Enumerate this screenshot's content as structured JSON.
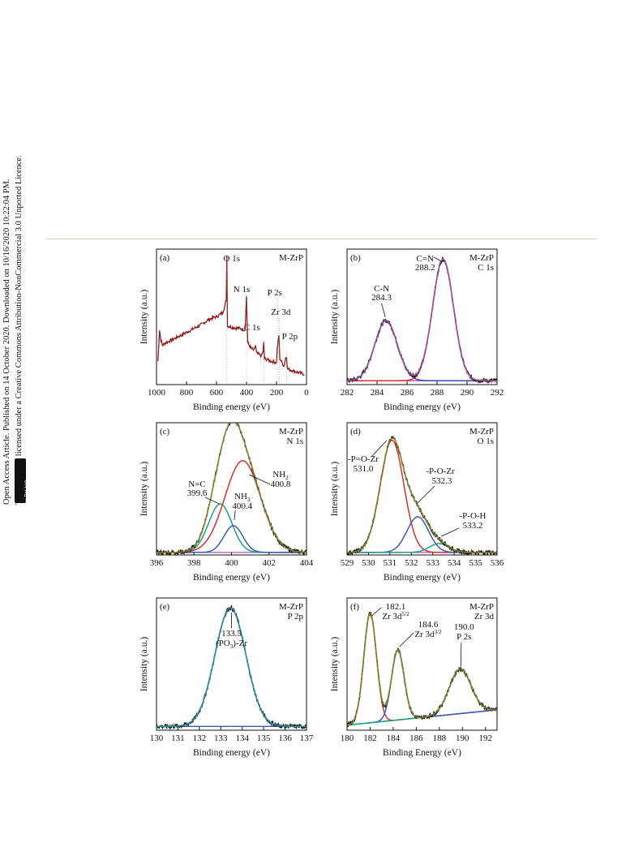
{
  "sidebar": {
    "line1": "Open Access Article. Published on 14 October 2020. Downloaded on 10/16/2020 10:22:04 PM.",
    "line2": "This article is licensed under a Creative Commons Attribution-NonCommercial 3.0 Unported Licence.",
    "badge": "cc BY-NC"
  },
  "chart_data": [
    {
      "type": "line",
      "panel": "(a)",
      "tag": "M-ZrP",
      "xlabel": "Binding energy (eV)",
      "ylabel": "Intensity (a.u.)",
      "xlim": [
        1000,
        0
      ],
      "xticks": [
        1000,
        800,
        600,
        400,
        200,
        0
      ],
      "annotations": [
        {
          "text": "O 1s",
          "x": 531
        },
        {
          "text": "N 1s",
          "x": 400
        },
        {
          "text": "P 2s",
          "x": 190
        },
        {
          "text": "Zr 3d",
          "x": 182
        },
        {
          "text": "C 1s",
          "x": 285
        },
        {
          "text": "P 2p",
          "x": 133
        }
      ],
      "series": [
        {
          "color": "#8b1a1a",
          "points": [
            [
              990,
              0.18
            ],
            [
              980,
              0.42
            ],
            [
              970,
              0.34
            ],
            [
              960,
              0.3
            ],
            [
              940,
              0.32
            ],
            [
              900,
              0.34
            ],
            [
              850,
              0.37
            ],
            [
              800,
              0.4
            ],
            [
              750,
              0.43
            ],
            [
              700,
              0.46
            ],
            [
              650,
              0.5
            ],
            [
              600,
              0.52
            ],
            [
              560,
              0.55
            ],
            [
              545,
              0.6
            ],
            [
              535,
              0.65
            ],
            [
              531,
              1.0
            ],
            [
              527,
              0.45
            ],
            [
              500,
              0.44
            ],
            [
              450,
              0.43
            ],
            [
              410,
              0.42
            ],
            [
              400,
              0.68
            ],
            [
              392,
              0.32
            ],
            [
              370,
              0.28
            ],
            [
              350,
              0.26
            ],
            [
              340,
              0.3
            ],
            [
              333,
              0.24
            ],
            [
              300,
              0.22
            ],
            [
              290,
              0.25
            ],
            [
              285,
              0.32
            ],
            [
              280,
              0.2
            ],
            [
              240,
              0.18
            ],
            [
              200,
              0.17
            ],
            [
              195,
              0.28
            ],
            [
              190,
              0.32
            ],
            [
              184,
              0.38
            ],
            [
              178,
              0.2
            ],
            [
              150,
              0.14
            ],
            [
              140,
              0.2
            ],
            [
              133,
              0.22
            ],
            [
              128,
              0.12
            ],
            [
              100,
              0.11
            ],
            [
              50,
              0.09
            ],
            [
              10,
              0.08
            ]
          ]
        }
      ]
    },
    {
      "type": "line",
      "panel": "(b)",
      "tag": "M-ZrP",
      "subtag": "C 1s",
      "xlabel": "Binding energy (eV)",
      "ylabel": "Intensity (a.u.)",
      "xlim": [
        282,
        292
      ],
      "xticks": [
        282,
        284,
        286,
        288,
        290,
        292
      ],
      "annotations": [
        {
          "text": "C=N",
          "x": 288.2
        },
        {
          "text": "288.2",
          "x": 288.2
        },
        {
          "text": "C-N",
          "x": 284.3
        },
        {
          "text": "284.3",
          "x": 284.3
        }
      ],
      "peaks": [
        {
          "name": "C-N",
          "center": 284.6,
          "height": 0.46,
          "sigma": 0.75,
          "color": "#3b4ab5"
        },
        {
          "name": "C=N",
          "center": 288.4,
          "height": 0.93,
          "sigma": 0.7,
          "color": "#d63030"
        }
      ],
      "baseline": [
        0.03,
        0.03
      ],
      "fit_color": "#b050b0",
      "raw_color": "#111111"
    },
    {
      "type": "line",
      "panel": "(c)",
      "tag": "M-ZrP",
      "subtag": "N 1s",
      "xlabel": "Binding energy (eV)",
      "ylabel": "Intensity (a.u.)",
      "xlim": [
        396,
        404
      ],
      "xticks": [
        396,
        398,
        400,
        402,
        404
      ],
      "annotations": [
        {
          "text": "N=C",
          "x": 399.6
        },
        {
          "text": "399.6",
          "x": 399.6
        },
        {
          "text": "NH3",
          "x": 400.4
        },
        {
          "text": "400.4",
          "x": 400.4
        },
        {
          "text": "NH2",
          "x": 400.8
        },
        {
          "text": "400.8",
          "x": 400.8
        }
      ],
      "peaks": [
        {
          "name": "N=C",
          "center": 399.4,
          "height": 0.38,
          "sigma": 0.62,
          "color": "#1aa087"
        },
        {
          "name": "NH3",
          "center": 400.1,
          "height": 0.21,
          "sigma": 0.5,
          "color": "#3b5ab5"
        },
        {
          "name": "NH2",
          "center": 400.6,
          "height": 0.72,
          "sigma": 0.95,
          "color": "#d63030"
        }
      ],
      "baseline": [
        0.02,
        0.02
      ],
      "fit_color": "#8a8a2a",
      "raw_color": "#111111"
    },
    {
      "type": "line",
      "panel": "(d)",
      "tag": "M-ZrP",
      "subtag": "O 1s",
      "xlabel": "Binding energy (eV)",
      "ylabel": "Intensity (a.u.)",
      "xlim": [
        529,
        536
      ],
      "xticks": [
        529,
        530,
        531,
        532,
        533,
        534,
        535,
        536
      ],
      "annotations": [
        {
          "text": "-P=O-Zr",
          "x": 531.0
        },
        {
          "text": "531.0",
          "x": 531.0
        },
        {
          "text": "-P-O-Zr",
          "x": 532.3
        },
        {
          "text": "532.3",
          "x": 532.3
        },
        {
          "text": "-P-O-H",
          "x": 533.2
        },
        {
          "text": "533.2",
          "x": 533.2
        }
      ],
      "peaks": [
        {
          "name": "-P=O-Zr",
          "center": 531.1,
          "height": 0.88,
          "sigma": 0.55,
          "color": "#d63030"
        },
        {
          "name": "-P-O-Zr",
          "center": 532.3,
          "height": 0.28,
          "sigma": 0.5,
          "color": "#3b5ab5"
        },
        {
          "name": "-P-O-H",
          "center": 533.3,
          "height": 0.07,
          "sigma": 0.45,
          "color": "#1aa087"
        }
      ],
      "baseline": [
        0.02,
        0.02
      ],
      "fit_color": "#8a8a2a",
      "raw_color": "#111111"
    },
    {
      "type": "line",
      "panel": "(e)",
      "tag": "M-ZrP",
      "subtag": "P 2p",
      "xlabel": "Binding energy (eV)",
      "ylabel": "Intensity (a.u.)",
      "xlim": [
        130,
        137
      ],
      "xticks": [
        130,
        131,
        132,
        133,
        134,
        135,
        136,
        137
      ],
      "annotations": [
        {
          "text": "133.5",
          "x": 133.5
        },
        {
          "text": "(PO3)-Zr",
          "x": 133.5
        }
      ],
      "peaks": [
        {
          "name": "(PO3)-Zr",
          "center": 133.45,
          "height": 0.93,
          "sigma": 0.72,
          "color": "#2a9aa8"
        }
      ],
      "baseline": [
        0.03,
        0.03
      ],
      "baseline_color": "#3b5ab5",
      "fit_color": "#2a9aa8",
      "raw_color": "#111111"
    },
    {
      "type": "line",
      "panel": "(f)",
      "tag": "M-ZrP",
      "subtag": "Zr 3d",
      "xlabel": "Binding Energy (eV)",
      "ylabel": "Intensity (a.u.)",
      "xlim": [
        180,
        193
      ],
      "xticks": [
        180,
        182,
        184,
        186,
        188,
        190,
        192
      ],
      "annotations": [
        {
          "text": "182.1",
          "x": 182.1
        },
        {
          "text": "Zr 3d5/2",
          "x": 182.1
        },
        {
          "text": "184.6",
          "x": 184.6
        },
        {
          "text": "Zr 3d3/2",
          "x": 184.6
        },
        {
          "text": "190.0",
          "x": 190.0
        },
        {
          "text": "P 2s",
          "x": 190.0
        }
      ],
      "peaks": [
        {
          "name": "Zr 3d5/2",
          "center": 182.0,
          "height": 0.86,
          "sigma": 0.55,
          "color": "#d63030"
        },
        {
          "name": "Zr 3d3/2",
          "center": 184.4,
          "height": 0.55,
          "sigma": 0.55,
          "color": "#3b5ab5"
        },
        {
          "name": "P 2s",
          "center": 189.8,
          "height": 0.35,
          "sigma": 0.95,
          "color": "#1aa087"
        }
      ],
      "baseline": [
        0.04,
        0.16
      ],
      "baseline_color": "#b050b0",
      "fit_color": "#8a8a2a",
      "raw_color": "#111111"
    }
  ]
}
